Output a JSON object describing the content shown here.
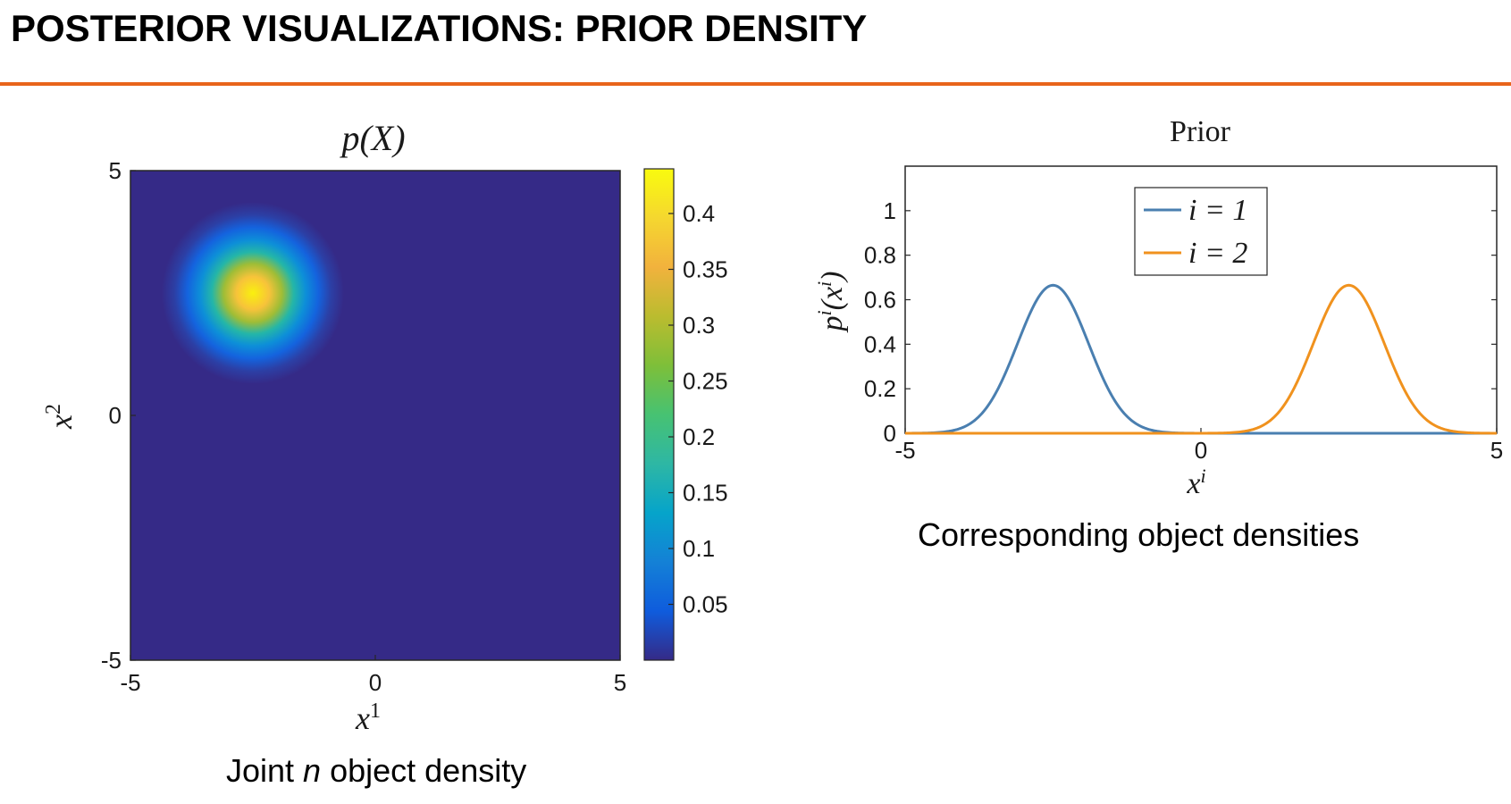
{
  "slide": {
    "title": "POSTERIOR VISUALIZATIONS: PRIOR DENSITY",
    "accent_color": "#e8641b"
  },
  "chart_data": [
    {
      "type": "heatmap",
      "title": "p(X)",
      "xlabel": "x1",
      "ylabel": "x2",
      "xlim": [
        -5,
        5
      ],
      "ylim": [
        -5,
        5
      ],
      "x_ticks": [
        "-5",
        "0",
        "5"
      ],
      "y_ticks": [
        "5",
        "0",
        "-5"
      ],
      "peak": {
        "x1": -2.5,
        "x2": 2.5,
        "value": 0.44,
        "sigma": 0.6
      },
      "colormap": "parula",
      "colorbar": {
        "range": [
          0,
          0.44
        ],
        "ticks": [
          0.05,
          0.1,
          0.15,
          0.2,
          0.25,
          0.3,
          0.35,
          0.4
        ],
        "tick_labels": [
          "0.05",
          "0.1",
          "0.15",
          "0.2",
          "0.25",
          "0.3",
          "0.35",
          "0.4"
        ]
      },
      "caption_prefix": "Joint ",
      "caption_italic": "n",
      "caption_suffix": " object density"
    },
    {
      "type": "line",
      "title": "Prior",
      "xlabel": "x^i",
      "ylabel": "p^i(x^i)",
      "xlim": [
        -5,
        5
      ],
      "ylim": [
        0,
        1.2
      ],
      "x_ticks": [
        "-5",
        "0",
        "5"
      ],
      "y_ticks": [
        "0",
        "0.2",
        "0.4",
        "0.6",
        "0.8",
        "1"
      ],
      "grid": false,
      "legend_position": "top-center",
      "series": [
        {
          "name": "i = 1",
          "color": "#4a7fb0",
          "mean": -2.5,
          "sigma": 0.6,
          "peak": 0.665
        },
        {
          "name": "i = 2",
          "color": "#f0921e",
          "mean": 2.5,
          "sigma": 0.6,
          "peak": 0.665
        }
      ],
      "caption": "Corresponding object densities"
    }
  ]
}
